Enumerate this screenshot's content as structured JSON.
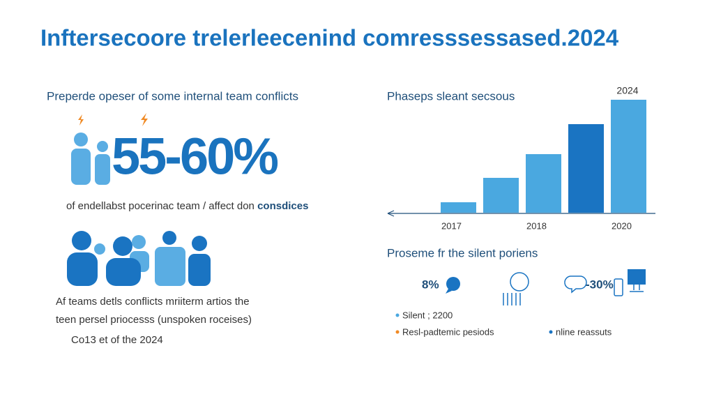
{
  "title": "Inftersecoore trelerleecenind comresssessased.2024",
  "left": {
    "heading": "Preperde opeser of some internal team conflicts",
    "stat": "55-60%",
    "caption": "of endellabst pocerinac team / affect don",
    "caption_bold": "consdices",
    "notes": [
      "Af teams detls conflicts mriiterm artios the",
      "teen persel priocesss (unspoken roceises)",
      "Co13 et of the 2024"
    ]
  },
  "chart_data": {
    "type": "bar",
    "title": "Phaseps sleant secsous",
    "annotation": "2024",
    "categories": [
      "2017",
      null,
      "2018",
      null,
      "2020"
    ],
    "values": [
      15,
      50,
      84,
      127,
      162
    ],
    "colors": [
      "#4aa8e0",
      "#4aa8e0",
      "#4aa8e0",
      "#1a74c2",
      "#4aa8e0"
    ]
  },
  "bottom": {
    "heading": "Proseme fr the silent poriens",
    "icon_labels": [
      "8%",
      "-30%"
    ],
    "legend": [
      "Silent ; 2200",
      "Resl-padtemic pesiods",
      "nline reassuts"
    ]
  }
}
